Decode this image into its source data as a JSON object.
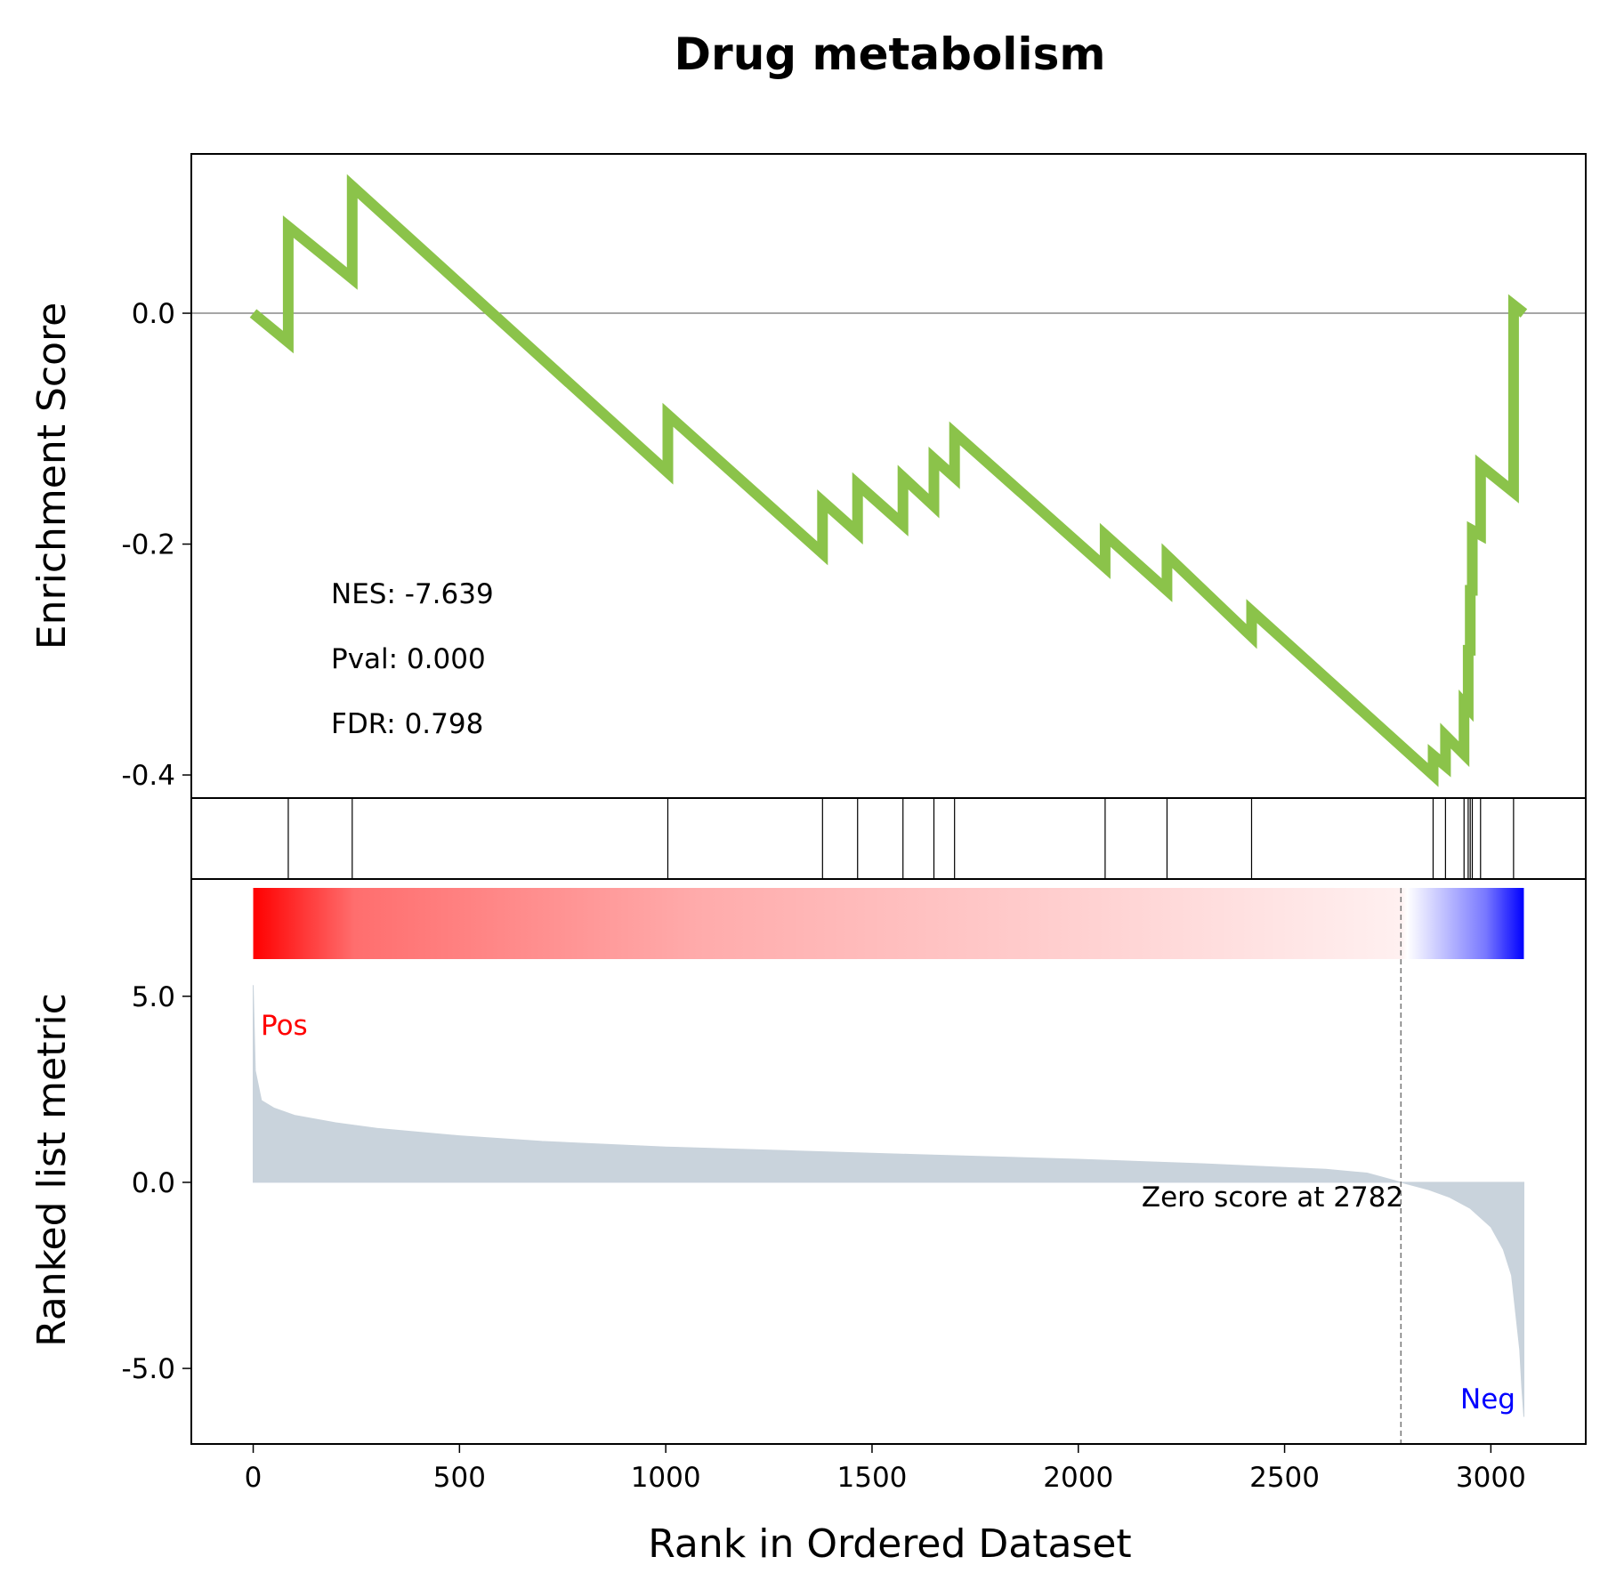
{
  "chart_data": {
    "type": "line",
    "title": "Drug metabolism",
    "xlabel": "Rank in Ordered Dataset",
    "xlim": [
      -150,
      3230
    ],
    "xticks": [
      0,
      500,
      1000,
      1500,
      2000,
      2500,
      3000
    ],
    "xtick_labels": [
      "0",
      "500",
      "1000",
      "1500",
      "2000",
      "2500",
      "3000"
    ],
    "enrichment": {
      "ylabel": "Enrichment Score",
      "ylim": [
        -0.42,
        0.138
      ],
      "yticks": [
        0.0,
        -0.2,
        -0.4
      ],
      "ytick_labels": [
        "0.0",
        "-0.2",
        "-0.4"
      ],
      "line_color": "#8bc34a",
      "points": [
        [
          0,
          0.0
        ],
        [
          85,
          -0.025
        ],
        [
          85,
          0.075
        ],
        [
          240,
          0.03
        ],
        [
          240,
          0.11
        ],
        [
          1005,
          -0.138
        ],
        [
          1005,
          -0.088
        ],
        [
          1380,
          -0.208
        ],
        [
          1380,
          -0.163
        ],
        [
          1465,
          -0.19
        ],
        [
          1465,
          -0.148
        ],
        [
          1575,
          -0.183
        ],
        [
          1575,
          -0.142
        ],
        [
          1650,
          -0.167
        ],
        [
          1650,
          -0.126
        ],
        [
          1700,
          -0.142
        ],
        [
          1700,
          -0.104
        ],
        [
          2065,
          -0.22
        ],
        [
          2065,
          -0.192
        ],
        [
          2215,
          -0.24
        ],
        [
          2215,
          -0.21
        ],
        [
          2420,
          -0.28
        ],
        [
          2420,
          -0.258
        ],
        [
          2860,
          -0.4
        ],
        [
          2860,
          -0.383
        ],
        [
          2890,
          -0.392
        ],
        [
          2890,
          -0.366
        ],
        [
          2935,
          -0.382
        ],
        [
          2935,
          -0.338
        ],
        [
          2945,
          -0.342
        ],
        [
          2945,
          -0.292
        ],
        [
          2950,
          -0.292
        ],
        [
          2950,
          -0.24
        ],
        [
          2955,
          -0.24
        ],
        [
          2955,
          -0.188
        ],
        [
          2975,
          -0.192
        ],
        [
          2975,
          -0.132
        ],
        [
          3055,
          -0.155
        ],
        [
          3055,
          0.007
        ],
        [
          3080,
          0.0
        ]
      ]
    },
    "stats": {
      "nes": "NES: -7.639",
      "pval": "Pval: 0.000",
      "fdr": "FDR: 0.798"
    },
    "hits": [
      85,
      240,
      1005,
      1380,
      1465,
      1575,
      1650,
      1700,
      2065,
      2215,
      2420,
      2860,
      2890,
      2935,
      2945,
      2950,
      2955,
      2975,
      3055
    ],
    "ranked_metric": {
      "ylabel": "Ranked list metric",
      "ylim": [
        -7.03,
        8.15
      ],
      "yticks": [
        5.0,
        0.0,
        -5.0
      ],
      "ytick_labels": [
        "5.0",
        "0.0",
        "-5.0"
      ],
      "fill_color": "#c9d3dc",
      "points": [
        [
          0,
          5.3
        ],
        [
          5,
          3.0
        ],
        [
          20,
          2.2
        ],
        [
          50,
          2.0
        ],
        [
          100,
          1.8
        ],
        [
          200,
          1.6
        ],
        [
          300,
          1.45
        ],
        [
          500,
          1.25
        ],
        [
          700,
          1.1
        ],
        [
          1000,
          0.95
        ],
        [
          1300,
          0.85
        ],
        [
          1600,
          0.75
        ],
        [
          2000,
          0.62
        ],
        [
          2300,
          0.5
        ],
        [
          2600,
          0.35
        ],
        [
          2700,
          0.25
        ],
        [
          2782,
          0.0
        ],
        [
          2850,
          -0.2
        ],
        [
          2900,
          -0.4
        ],
        [
          2950,
          -0.7
        ],
        [
          3000,
          -1.2
        ],
        [
          3030,
          -1.8
        ],
        [
          3050,
          -2.5
        ],
        [
          3060,
          -3.5
        ],
        [
          3070,
          -4.5
        ],
        [
          3075,
          -5.5
        ],
        [
          3080,
          -6.3
        ]
      ],
      "pos_label": "Pos",
      "neg_label": "Neg",
      "zero_label": "Zero score at 2782",
      "zero_rank": 2782,
      "n_total": 3080
    },
    "colorbar": {
      "pos_color": "#ff0000",
      "neg_color": "#0000ff",
      "mid_color": "#ffffff"
    }
  }
}
